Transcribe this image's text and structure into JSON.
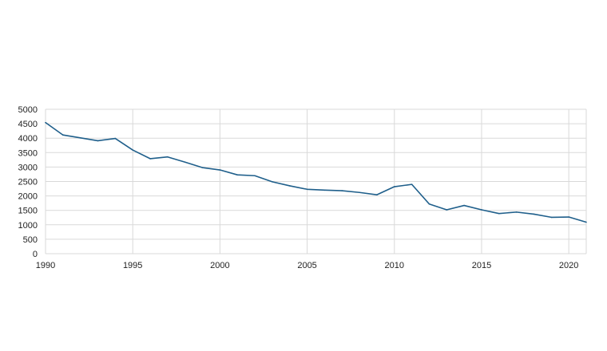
{
  "chart_data": {
    "type": "line",
    "title": "",
    "xlabel": "",
    "ylabel": "",
    "xlim": [
      1990,
      2021
    ],
    "ylim": [
      0,
      5000
    ],
    "x_ticks": [
      1990,
      1995,
      2000,
      2005,
      2010,
      2015,
      2020
    ],
    "y_ticks": [
      0,
      500,
      1000,
      1500,
      2000,
      2500,
      3000,
      3500,
      4000,
      4500,
      5000
    ],
    "grid": true,
    "legend": "none",
    "series": [
      {
        "color": "#1f5f8b",
        "x": [
          1990,
          1991,
          1992,
          1993,
          1994,
          1995,
          1996,
          1997,
          1998,
          1999,
          2000,
          2001,
          2002,
          2003,
          2004,
          2005,
          2006,
          2007,
          2008,
          2009,
          2010,
          2011,
          2012,
          2013,
          2014,
          2015,
          2016,
          2017,
          2018,
          2019,
          2020,
          2021
        ],
        "values": [
          4540,
          4110,
          4010,
          3910,
          3990,
          3590,
          3290,
          3350,
          3170,
          2980,
          2900,
          2730,
          2700,
          2490,
          2350,
          2230,
          2200,
          2180,
          2120,
          2040,
          2320,
          2400,
          1720,
          1520,
          1670,
          1520,
          1390,
          1440,
          1370,
          1260,
          1270,
          1090
        ]
      }
    ]
  },
  "colors": {
    "line": "#1f5f8b",
    "grid": "#d9d9d9",
    "axis_text": "#222222"
  }
}
